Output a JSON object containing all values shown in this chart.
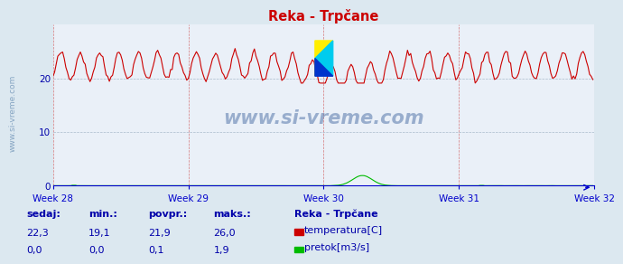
{
  "title": "Reka - Trpčane",
  "background_color": "#dce8f0",
  "plot_bg_color": "#eaf0f8",
  "grid_color": "#c0ccd8",
  "x_weeks": [
    "Week 28",
    "Week 29",
    "Week 30",
    "Week 31",
    "Week 32"
  ],
  "ylim": [
    0,
    30
  ],
  "yticks": [
    0,
    10,
    20
  ],
  "n_points": 336,
  "temp_min": 19.1,
  "temp_max": 26.0,
  "temp_mean": 21.9,
  "temp_last": 22.3,
  "flow_min": 0.0,
  "flow_max": 1.9,
  "flow_mean": 0.1,
  "flow_last": 0.0,
  "temp_color": "#cc0000",
  "flow_color": "#00bb00",
  "axis_color": "#0000cc",
  "title_color": "#cc0000",
  "label_color": "#0000aa",
  "watermark": "www.si-vreme.com",
  "watermark_color": "#5577aa",
  "legend_title": "Reka - Trpčane",
  "legend_items": [
    "temperatura[C]",
    "pretok[m3/s]"
  ],
  "legend_colors": [
    "#cc0000",
    "#00bb00"
  ],
  "stat_labels": [
    "sedaj:",
    "min.:",
    "povpr.:",
    "maks.:"
  ],
  "stat_values_temp": [
    "22,3",
    "19,1",
    "21,9",
    "26,0"
  ],
  "stat_values_flow": [
    "0,0",
    "0,0",
    "0,1",
    "1,9"
  ],
  "sidebar_text": "www.si-vreme.com",
  "sidebar_color": "#7799bb"
}
